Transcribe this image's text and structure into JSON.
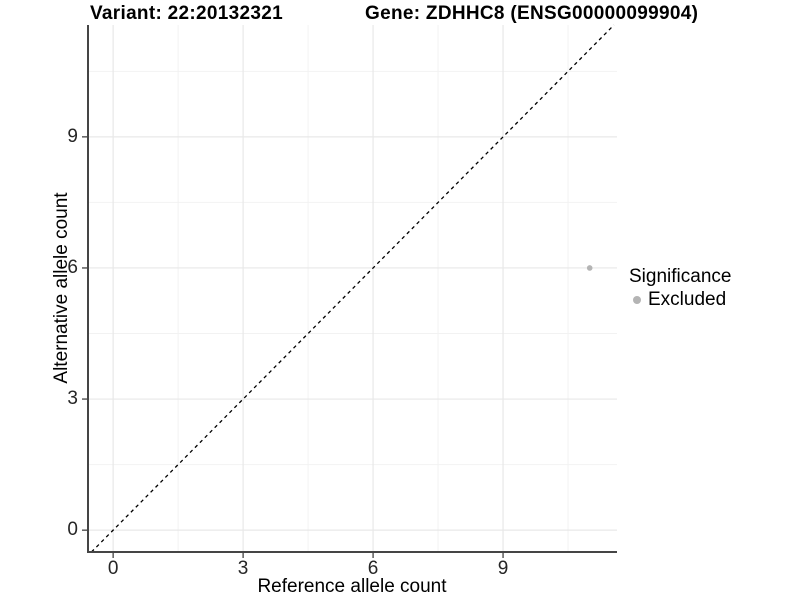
{
  "titles": {
    "left": "Variant: 22:20132321",
    "right": "Gene: ZDHHC8 (ENSG00000099904)"
  },
  "legend": {
    "title": "Significance",
    "items": [
      {
        "label": "Excluded",
        "color": "#b4b4b4"
      }
    ]
  },
  "chart_data": {
    "type": "scatter",
    "title": "Variant: 22:20132321 | Gene: ZDHHC8 (ENSG00000099904)",
    "xlabel": "Reference allele count",
    "ylabel": "Alternative allele count",
    "xlim": [
      -0.58,
      11.63
    ],
    "ylim": [
      -0.5,
      11.56
    ],
    "xticks": [
      0,
      3,
      6,
      9
    ],
    "yticks": [
      0,
      3,
      6,
      9
    ],
    "xminor": [
      1.5,
      4.5,
      7.5,
      10.5
    ],
    "yminor": [
      1.5,
      4.5,
      7.5,
      10.5
    ],
    "grid": true,
    "legend_position": "right",
    "reference_line": {
      "kind": "identity",
      "style": "dashed"
    },
    "series": [
      {
        "name": "Excluded",
        "points": [
          {
            "x": 11,
            "y": 6
          }
        ]
      }
    ],
    "colors": {
      "point": "#b4b4b4",
      "grid_major": "#e8e8e8",
      "grid_minor": "#f2f2f2",
      "axis_line": "#454545",
      "tick_mark": "#333333",
      "reference_line": "#000000",
      "tick_text": "#262626"
    }
  }
}
